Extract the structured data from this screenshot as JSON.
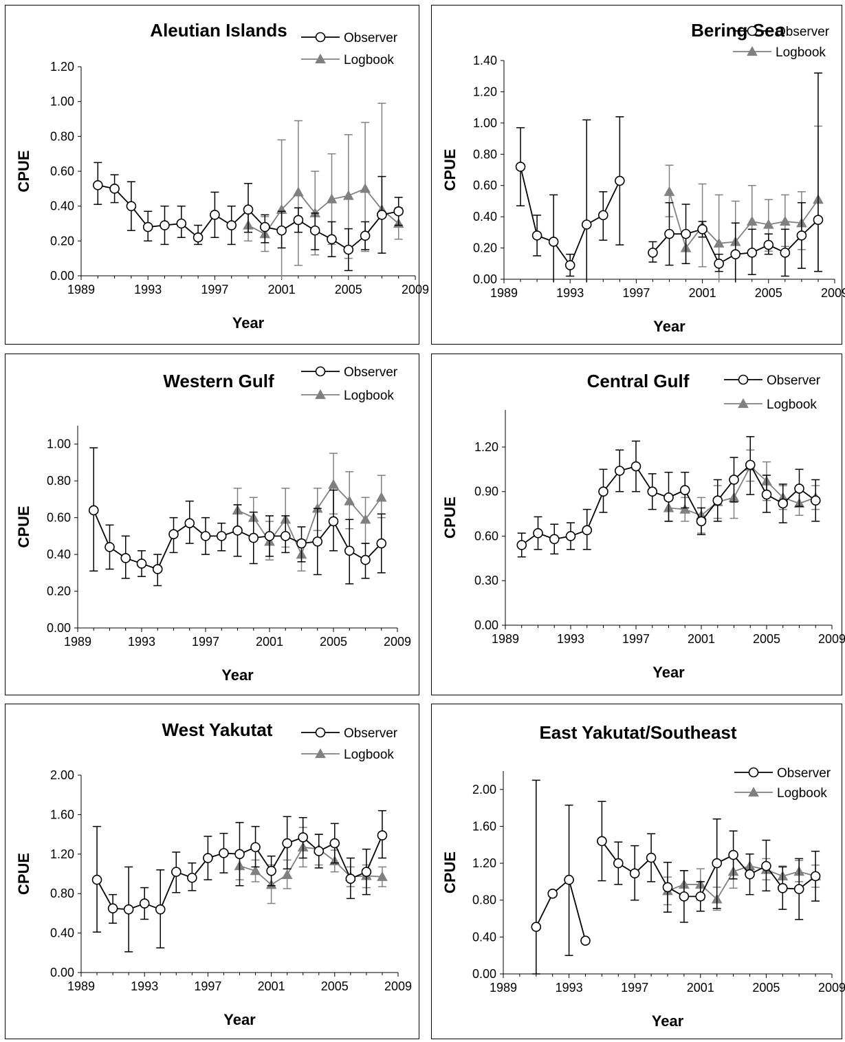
{
  "chart_data": [
    {
      "type": "line",
      "title": "Aleutian Islands",
      "xlabel": "Year",
      "ylabel": "CPUE",
      "xlim": [
        1989,
        2009
      ],
      "xticks": [
        "1989",
        "1993",
        "1997",
        "2001",
        "2005",
        "2009"
      ],
      "ylim": [
        0,
        1.2
      ],
      "yticks": [
        "0.00",
        "0.20",
        "0.40",
        "0.60",
        "0.80",
        "1.00",
        "1.20"
      ],
      "legend_position": "top-right",
      "series": [
        {
          "name": "Observer",
          "color": "#000000",
          "marker": "circle",
          "x": [
            1990,
            1991,
            1992,
            1993,
            1994,
            1995,
            1996,
            1997,
            1998,
            1999,
            2000,
            2001,
            2002,
            2003,
            2004,
            2005,
            2006,
            2007,
            2008
          ],
          "y": [
            0.52,
            0.5,
            0.4,
            0.28,
            0.29,
            0.3,
            0.22,
            0.35,
            0.29,
            0.38,
            0.28,
            0.26,
            0.32,
            0.26,
            0.21,
            0.15,
            0.23,
            0.35,
            0.37
          ],
          "err_low": [
            0.41,
            0.42,
            0.26,
            0.2,
            0.18,
            0.22,
            0.18,
            0.22,
            0.18,
            0.25,
            0.19,
            0.16,
            0.25,
            0.15,
            0.11,
            0.03,
            0.15,
            0.13,
            0.29
          ],
          "err_high": [
            0.65,
            0.58,
            0.54,
            0.37,
            0.4,
            0.4,
            0.29,
            0.48,
            0.4,
            0.53,
            0.35,
            0.37,
            0.39,
            0.36,
            0.31,
            0.27,
            0.31,
            0.57,
            0.45
          ]
        },
        {
          "name": "Logbook",
          "color": "#808080",
          "marker": "triangle",
          "x": [
            1999,
            2000,
            2001,
            2002,
            2003,
            2004,
            2005,
            2006,
            2007,
            2008
          ],
          "y": [
            0.29,
            0.24,
            0.38,
            0.48,
            0.36,
            0.44,
            0.46,
            0.5,
            0.38,
            0.3
          ],
          "err_low": [
            0.2,
            0.14,
            -0.02,
            0.06,
            0.12,
            0.18,
            0.1,
            0.14,
            0.35,
            0.21
          ],
          "err_high": [
            0.37,
            0.34,
            0.78,
            0.89,
            0.6,
            0.7,
            0.81,
            0.88,
            0.99,
            0.39
          ]
        }
      ]
    },
    {
      "type": "line",
      "title": "Bering Sea",
      "xlabel": "Year",
      "ylabel": "CPUE",
      "xlim": [
        1989,
        2009
      ],
      "xticks": [
        "1989",
        "1993",
        "1997",
        "2001",
        "2005",
        "2009"
      ],
      "ylim": [
        0,
        1.4
      ],
      "yticks": [
        "0.00",
        "0.20",
        "0.40",
        "0.60",
        "0.80",
        "1.00",
        "1.20",
        "1.40"
      ],
      "legend_position": "top-right",
      "series": [
        {
          "name": "Observer",
          "color": "#000000",
          "marker": "circle",
          "x": [
            1990,
            1991,
            1992,
            1993,
            1994,
            1995,
            1996,
            1998,
            1999,
            2000,
            2001,
            2002,
            2003,
            2004,
            2005,
            2006,
            2007,
            2008
          ],
          "y": [
            0.72,
            0.28,
            0.24,
            0.09,
            0.35,
            0.41,
            0.63,
            0.17,
            0.29,
            0.29,
            0.32,
            0.1,
            0.16,
            0.17,
            0.22,
            0.17,
            0.28,
            0.38
          ],
          "err_low": [
            0.47,
            0.15,
            -0.02,
            0.02,
            -0.02,
            0.25,
            0.22,
            0.11,
            0.09,
            0.1,
            0.27,
            0.05,
            -0.02,
            0.03,
            0.16,
            0.02,
            0.07,
            0.05
          ],
          "err_high": [
            0.97,
            0.41,
            0.54,
            0.16,
            1.02,
            0.56,
            1.04,
            0.24,
            0.49,
            0.48,
            0.37,
            0.16,
            0.36,
            0.32,
            0.29,
            0.32,
            0.49,
            1.32
          ]
        },
        {
          "name": "Logbook",
          "color": "#808080",
          "marker": "triangle",
          "x": [
            1999,
            2000,
            2001,
            2002,
            2003,
            2004,
            2005,
            2006,
            2007,
            2008
          ],
          "y": [
            0.56,
            0.2,
            0.34,
            0.23,
            0.24,
            0.37,
            0.35,
            0.37,
            0.36,
            0.51
          ],
          "err_low": [
            0.4,
            0.1,
            0.08,
            -0.02,
            -0.02,
            0.15,
            0.18,
            0.21,
            0.19,
            0.05
          ],
          "err_high": [
            0.73,
            0.3,
            0.61,
            0.54,
            0.5,
            0.6,
            0.51,
            0.54,
            0.56,
            0.98
          ]
        }
      ]
    },
    {
      "type": "line",
      "title": "Western Gulf",
      "xlabel": "Year",
      "ylabel": "CPUE",
      "xlim": [
        1989,
        2009
      ],
      "xticks": [
        "1989",
        "1993",
        "1997",
        "2001",
        "2005",
        "2009"
      ],
      "ylim": [
        0,
        1.1
      ],
      "yticks": [
        "0.00",
        "0.20",
        "0.40",
        "0.60",
        "0.80",
        "1.00"
      ],
      "legend_position": "top-right",
      "series": [
        {
          "name": "Observer",
          "color": "#000000",
          "marker": "circle",
          "x": [
            1990,
            1991,
            1992,
            1993,
            1994,
            1995,
            1996,
            1997,
            1998,
            1999,
            2000,
            2001,
            2002,
            2003,
            2004,
            2005,
            2006,
            2007,
            2008
          ],
          "y": [
            0.64,
            0.44,
            0.38,
            0.35,
            0.32,
            0.51,
            0.57,
            0.5,
            0.5,
            0.53,
            0.49,
            0.5,
            0.5,
            0.46,
            0.47,
            0.58,
            0.42,
            0.37,
            0.46
          ],
          "err_low": [
            0.31,
            0.32,
            0.27,
            0.28,
            0.23,
            0.41,
            0.46,
            0.4,
            0.42,
            0.39,
            0.35,
            0.39,
            0.41,
            0.36,
            0.29,
            0.42,
            0.24,
            0.27,
            0.3
          ],
          "err_high": [
            0.98,
            0.56,
            0.5,
            0.42,
            0.4,
            0.6,
            0.69,
            0.6,
            0.57,
            0.67,
            0.63,
            0.61,
            0.61,
            0.55,
            0.65,
            0.75,
            0.59,
            0.46,
            0.62
          ]
        },
        {
          "name": "Logbook",
          "color": "#808080",
          "marker": "triangle",
          "x": [
            1999,
            2000,
            2001,
            2002,
            2003,
            2004,
            2005,
            2006,
            2007,
            2008
          ],
          "y": [
            0.64,
            0.6,
            0.47,
            0.59,
            0.4,
            0.65,
            0.78,
            0.69,
            0.59,
            0.71
          ],
          "err_low": [
            0.52,
            0.5,
            0.37,
            0.44,
            0.31,
            0.53,
            0.62,
            0.54,
            0.46,
            0.6
          ],
          "err_high": [
            0.76,
            0.71,
            0.58,
            0.76,
            0.48,
            0.76,
            0.95,
            0.85,
            0.71,
            0.83
          ]
        }
      ]
    },
    {
      "type": "line",
      "title": "Central Gulf",
      "xlabel": "Year",
      "ylabel": "CPUE",
      "xlim": [
        1989,
        2009
      ],
      "xticks": [
        "1989",
        "1993",
        "1997",
        "2001",
        "2005",
        "2009"
      ],
      "ylim": [
        0,
        1.45
      ],
      "yticks": [
        "0.00",
        "0.30",
        "0.60",
        "0.90",
        "1.20"
      ],
      "legend_position": "top-right",
      "series": [
        {
          "name": "Observer",
          "color": "#000000",
          "marker": "circle",
          "x": [
            1990,
            1991,
            1992,
            1993,
            1994,
            1995,
            1996,
            1997,
            1998,
            1999,
            2000,
            2001,
            2002,
            2003,
            2004,
            2005,
            2006,
            2007,
            2008
          ],
          "y": [
            0.54,
            0.62,
            0.58,
            0.6,
            0.64,
            0.9,
            1.04,
            1.07,
            0.9,
            0.86,
            0.91,
            0.7,
            0.84,
            0.98,
            1.08,
            0.88,
            0.82,
            0.92,
            0.84
          ],
          "err_low": [
            0.46,
            0.51,
            0.48,
            0.51,
            0.51,
            0.76,
            0.9,
            0.9,
            0.78,
            0.7,
            0.79,
            0.61,
            0.7,
            0.83,
            0.88,
            0.76,
            0.69,
            0.8,
            0.7
          ],
          "err_high": [
            0.62,
            0.73,
            0.68,
            0.69,
            0.78,
            1.05,
            1.18,
            1.24,
            1.02,
            1.03,
            1.03,
            0.79,
            0.98,
            1.13,
            1.27,
            1.01,
            0.95,
            1.05,
            0.98
          ]
        },
        {
          "name": "Logbook",
          "color": "#808080",
          "marker": "triangle",
          "x": [
            1999,
            2000,
            2001,
            2002,
            2003,
            2004,
            2005,
            2006,
            2007,
            2008
          ],
          "y": [
            0.79,
            0.78,
            0.74,
            0.83,
            0.86,
            1.07,
            0.97,
            0.86,
            0.82,
            0.86
          ],
          "err_low": [
            0.7,
            0.7,
            0.62,
            0.72,
            0.72,
            0.97,
            0.84,
            0.78,
            0.74,
            0.78
          ],
          "err_high": [
            0.88,
            0.86,
            0.86,
            0.94,
            1.0,
            1.18,
            1.1,
            0.94,
            0.9,
            0.94
          ]
        }
      ]
    },
    {
      "type": "line",
      "title": "West Yakutat",
      "xlabel": "Year",
      "ylabel": "CPUE",
      "xlim": [
        1989,
        2009
      ],
      "xticks": [
        "1989",
        "1993",
        "1997",
        "2001",
        "2005",
        "2009"
      ],
      "ylim": [
        0,
        2.0
      ],
      "yticks": [
        "0.00",
        "0.40",
        "0.80",
        "1.20",
        "1.60",
        "2.00"
      ],
      "legend_position": "top-right",
      "series": [
        {
          "name": "Observer",
          "color": "#000000",
          "marker": "circle",
          "x": [
            1990,
            1991,
            1992,
            1993,
            1994,
            1995,
            1996,
            1997,
            1998,
            1999,
            2000,
            2001,
            2002,
            2003,
            2004,
            2005,
            2006,
            2007,
            2008
          ],
          "y": [
            0.94,
            0.65,
            0.64,
            0.7,
            0.64,
            1.02,
            0.96,
            1.16,
            1.21,
            1.2,
            1.27,
            1.03,
            1.31,
            1.37,
            1.23,
            1.31,
            0.95,
            1.02,
            1.39
          ],
          "err_low": [
            0.41,
            0.5,
            0.21,
            0.54,
            0.25,
            0.81,
            0.83,
            0.94,
            1.01,
            0.88,
            1.07,
            0.88,
            1.05,
            1.16,
            1.06,
            1.11,
            0.75,
            0.79,
            1.16
          ],
          "err_high": [
            1.48,
            0.79,
            1.07,
            0.86,
            1.04,
            1.22,
            1.11,
            1.38,
            1.41,
            1.52,
            1.48,
            1.18,
            1.58,
            1.57,
            1.4,
            1.51,
            1.16,
            1.25,
            1.64
          ]
        },
        {
          "name": "Logbook",
          "color": "#808080",
          "marker": "triangle",
          "x": [
            1999,
            2000,
            2001,
            2002,
            2003,
            2004,
            2005,
            2006,
            2007,
            2008
          ],
          "y": [
            1.08,
            1.03,
            0.89,
            0.99,
            1.27,
            1.25,
            1.13,
            0.97,
            0.98,
            0.97
          ],
          "err_low": [
            0.94,
            0.92,
            0.7,
            0.85,
            1.07,
            1.09,
            1.02,
            0.87,
            0.86,
            0.87
          ],
          "err_high": [
            1.21,
            1.14,
            1.09,
            1.14,
            1.47,
            1.4,
            1.24,
            1.07,
            1.09,
            1.07
          ]
        }
      ]
    },
    {
      "type": "line",
      "title": "East Yakutat/Southeast",
      "xlabel": "Year",
      "ylabel": "CPUE",
      "xlim": [
        1989,
        2009
      ],
      "xticks": [
        "1989",
        "1993",
        "1997",
        "2001",
        "2005",
        "2009"
      ],
      "ylim": [
        0,
        2.2
      ],
      "yticks": [
        "0.00",
        "0.40",
        "0.80",
        "1.20",
        "1.60",
        "2.00"
      ],
      "legend_position": "top-right",
      "series": [
        {
          "name": "Observer",
          "color": "#000000",
          "marker": "circle",
          "x": [
            1991,
            1992,
            1993,
            1994,
            1995,
            1996,
            1997,
            1998,
            1999,
            2000,
            2001,
            2002,
            2003,
            2004,
            2005,
            2006,
            2007,
            2008
          ],
          "y": [
            0.51,
            0.87,
            1.02,
            0.36,
            1.44,
            1.2,
            1.09,
            1.26,
            0.94,
            0.84,
            0.84,
            1.2,
            1.29,
            1.08,
            1.17,
            0.93,
            0.92,
            1.06
          ],
          "gap_before": [
            1995
          ],
          "err_low": [
            0.0,
            0.87,
            0.2,
            0.36,
            1.01,
            0.97,
            0.8,
            1.0,
            0.67,
            0.56,
            0.68,
            0.71,
            1.03,
            0.86,
            0.9,
            0.7,
            0.59,
            0.79
          ],
          "err_high": [
            2.1,
            0.87,
            1.83,
            0.36,
            1.87,
            1.43,
            1.39,
            1.52,
            1.21,
            1.12,
            1.0,
            1.68,
            1.55,
            1.3,
            1.45,
            1.16,
            1.25,
            1.33
          ]
        },
        {
          "name": "Logbook",
          "color": "#808080",
          "marker": "triangle",
          "x": [
            1999,
            2000,
            2001,
            2002,
            2003,
            2004,
            2005,
            2006,
            2007,
            2008
          ],
          "y": [
            0.9,
            0.97,
            0.97,
            0.81,
            1.11,
            1.17,
            1.13,
            1.06,
            1.11,
            1.06
          ],
          "err_low": [
            0.75,
            0.82,
            0.8,
            0.69,
            0.93,
            1.05,
            1.02,
            0.96,
            1.0,
            0.94
          ],
          "err_high": [
            1.05,
            1.12,
            1.14,
            0.94,
            1.3,
            1.3,
            1.25,
            1.17,
            1.23,
            1.18
          ]
        }
      ]
    }
  ]
}
